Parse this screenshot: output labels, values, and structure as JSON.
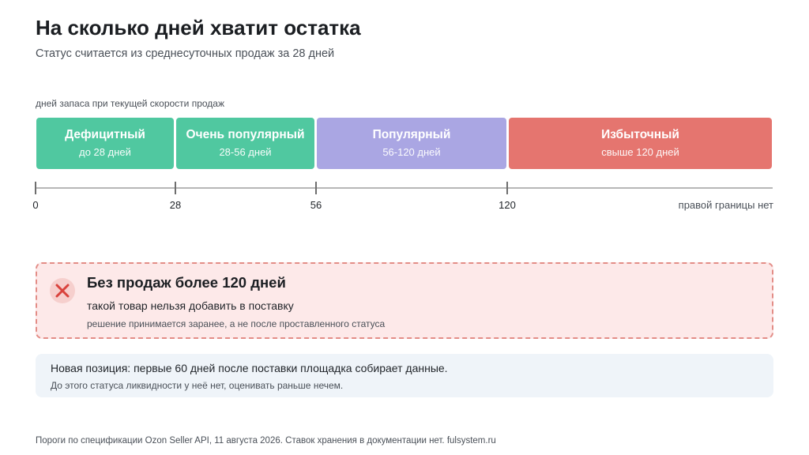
{
  "header": {
    "title": "На сколько дней хватит остатка",
    "subtitle": "Статус считается из среднесуточных продаж за 28 дней"
  },
  "scale": {
    "caption": "дней запаса при текущей скорости продаж",
    "segments": [
      {
        "name": "Дефицитный",
        "range": "до 28 дней",
        "from": 0,
        "to": 28,
        "color": "#50c8a0"
      },
      {
        "name": "Очень популярный",
        "range": "28-56 дней",
        "from": 28,
        "to": 56,
        "color": "#50c8a0"
      },
      {
        "name": "Популярный",
        "range": "56-120 дней",
        "from": 56,
        "to": 120,
        "color": "#aaa6e3"
      },
      {
        "name": "Избыточный",
        "range": "свыше 120 дней",
        "from": 120,
        "to": null,
        "color": "#e5756f"
      }
    ],
    "ticks": [
      "0",
      "28",
      "56",
      "120"
    ],
    "end_label": "правой границы нет"
  },
  "warning": {
    "icon": "close-icon",
    "title": "Без продаж более 120 дней",
    "text": "такой товар нельзя добавить в поставку",
    "note": "решение принимается заранее, а не после проставленного статуса",
    "color": "#e38d87"
  },
  "info": {
    "text": "Новая позиция: первые 60 дней после поставки площадка собирает данные.",
    "note": "До этого статуса ликвидности у неё нет, оценивать раньше нечем."
  },
  "footer": {
    "text": "Пороги по спецификации Ozon Seller API, 11 августа 2026. Ставок хранения в документации нет. fulsystem.ru"
  }
}
